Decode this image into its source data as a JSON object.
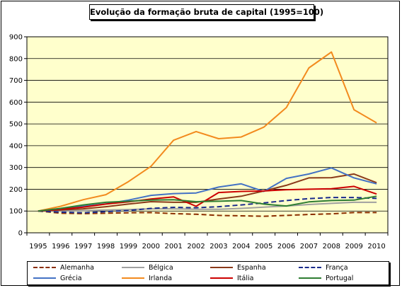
{
  "chart_data": {
    "type": "line",
    "title": "Evolução da formação bruta de capital (1995=100)",
    "xlabel": "",
    "ylabel": "",
    "x": [
      "1995",
      "1996",
      "1997",
      "1998",
      "1999",
      "2000",
      "2001",
      "2002",
      "2003",
      "2004",
      "2005",
      "2006",
      "2007",
      "2008",
      "2009",
      "2010"
    ],
    "ylim": [
      0,
      900
    ],
    "yticks": [
      0,
      100,
      200,
      300,
      400,
      500,
      600,
      700,
      800,
      900
    ],
    "grid": true,
    "legend_position": "bottom",
    "plot_background": "#ffffcc",
    "series": [
      {
        "name": "Alemanha",
        "color": "#8b2e00",
        "dash": "dashed",
        "values": [
          100,
          90,
          88,
          90,
          92,
          93,
          88,
          85,
          80,
          78,
          76,
          80,
          84,
          87,
          93,
          93
        ]
      },
      {
        "name": "Bélgica",
        "color": "#a0a0a0",
        "dash": "solid",
        "values": [
          100,
          100,
          102,
          105,
          107,
          110,
          110,
          108,
          108,
          112,
          118,
          123,
          130,
          135,
          140,
          140
        ]
      },
      {
        "name": "Espanha",
        "color": "#8b3a1a",
        "dash": "solid",
        "values": [
          100,
          105,
          110,
          120,
          132,
          143,
          140,
          140,
          155,
          168,
          192,
          218,
          252,
          253,
          270,
          230
        ]
      },
      {
        "name": "França",
        "color": "#1a2b8c",
        "dash": "dashed",
        "values": [
          100,
          95,
          92,
          97,
          102,
          112,
          117,
          115,
          120,
          128,
          137,
          148,
          157,
          162,
          162,
          158
        ]
      },
      {
        "name": "Grécia",
        "color": "#4472c4",
        "dash": "solid",
        "values": [
          100,
          110,
          122,
          133,
          150,
          172,
          180,
          183,
          210,
          225,
          190,
          250,
          270,
          298,
          252,
          225
        ]
      },
      {
        "name": "Irlanda",
        "color": "#f28a1e",
        "dash": "solid",
        "values": [
          100,
          122,
          152,
          175,
          235,
          305,
          425,
          465,
          432,
          440,
          485,
          575,
          757,
          830,
          565,
          505
        ]
      },
      {
        "name": "Itália",
        "color": "#cc0000",
        "dash": "solid",
        "values": [
          100,
          108,
          118,
          132,
          142,
          155,
          165,
          122,
          185,
          190,
          192,
          198,
          200,
          202,
          213,
          178
        ]
      },
      {
        "name": "Portugal",
        "color": "#2e7d32",
        "dash": "solid",
        "values": [
          100,
          112,
          128,
          140,
          145,
          150,
          152,
          143,
          145,
          148,
          132,
          123,
          142,
          148,
          150,
          168
        ]
      }
    ]
  }
}
